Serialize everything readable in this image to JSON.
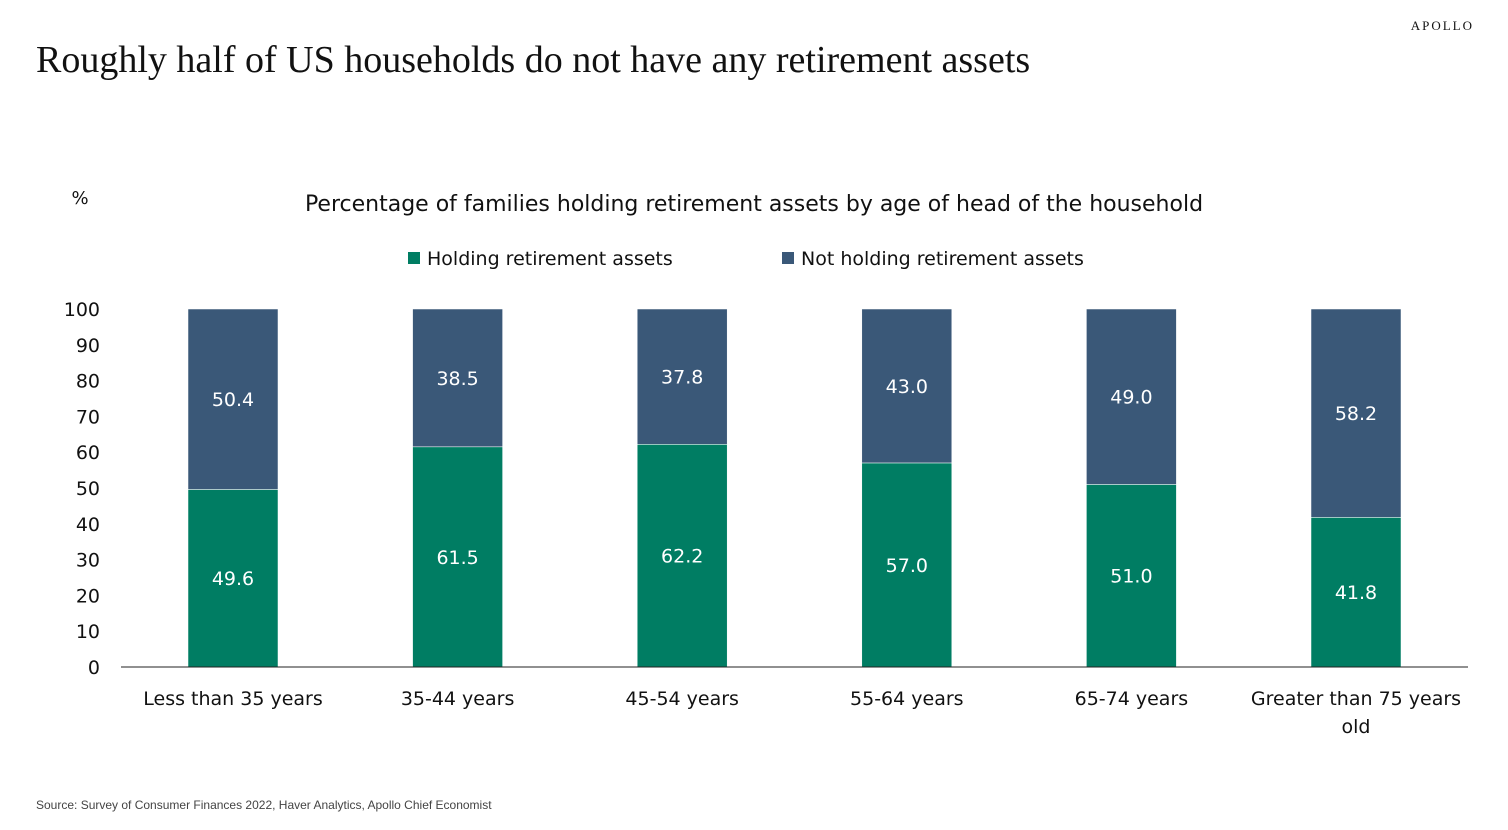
{
  "brand": "APOLLO",
  "page_title": "Roughly half of US households do not have any retirement assets",
  "source": "Source: Survey of Consumer Finances 2022, Haver Analytics, Apollo Chief Economist",
  "colors": {
    "holding": "#007D63",
    "not_holding": "#3A5878",
    "label_on_bar": "#ffffff",
    "text": "#111111"
  },
  "chart_data": {
    "type": "bar",
    "stacked": true,
    "title": "Percentage of families holding retirement assets by age of head of the household",
    "ylabel": "%",
    "xlabel": "",
    "ylim": [
      0,
      100
    ],
    "yticks": [
      0,
      10,
      20,
      30,
      40,
      50,
      60,
      70,
      80,
      90,
      100
    ],
    "grid": false,
    "legend_position": "top-center",
    "categories": [
      "Less than 35 years",
      "35-44 years",
      "45-54 years",
      "55-64 years",
      "65-74 years",
      "Greater than 75 years old"
    ],
    "series": [
      {
        "name": "Holding retirement assets",
        "color": "#007D63",
        "values": [
          49.6,
          61.5,
          62.2,
          57.0,
          51.0,
          41.8
        ]
      },
      {
        "name": "Not holding retirement assets",
        "color": "#3A5878",
        "values": [
          50.4,
          38.5,
          37.8,
          43.0,
          49.0,
          58.2
        ]
      }
    ]
  }
}
